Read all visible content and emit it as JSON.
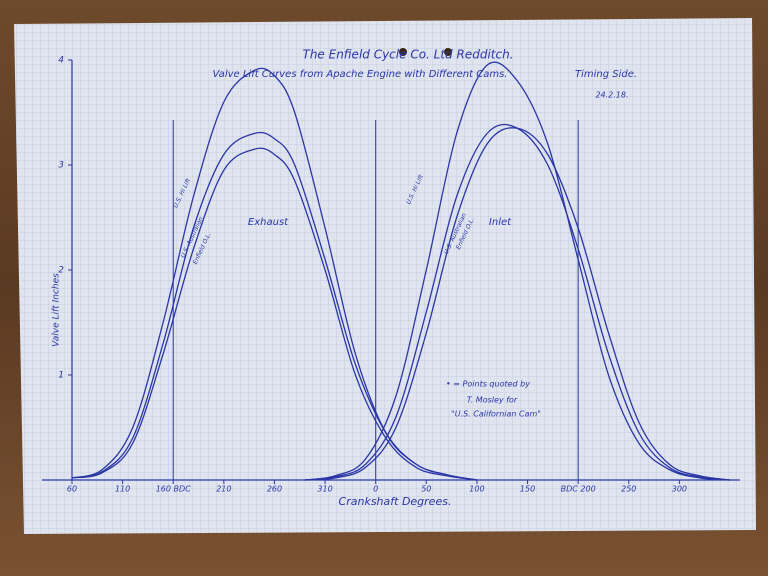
{
  "chart_data": {
    "type": "line",
    "title": "The Enfield Cycle Co. Ltd Redditch.",
    "subtitle": "Valve Lift Curves from Apache Engine with Different Cams.",
    "annotations": [
      "Timing Side.",
      "24.2.18.",
      "Exhaust",
      "Inlet",
      "• = Points quoted by",
      "T. Mosley for",
      "\"U.S. Californian Cam\""
    ],
    "x_label": "Crankshaft Degrees.",
    "y_label": "Valve Lift Inches",
    "xlim": [
      60,
      710
    ],
    "ylim": [
      0,
      4
    ],
    "xticks": [
      60,
      110,
      {
        "value": 160,
        "label": "160 BDC"
      },
      210,
      260,
      310,
      {
        "value": 360,
        "label": "0"
      },
      {
        "value": 410,
        "label": "50"
      },
      {
        "value": 460,
        "label": "100"
      },
      {
        "value": 510,
        "label": "150"
      },
      {
        "value": 560,
        "label": "BDC 200"
      },
      {
        "value": 610,
        "label": "250"
      },
      {
        "value": 660,
        "label": "300"
      }
    ],
    "yticks": [
      1,
      2,
      3,
      4
    ],
    "reference_lines": [
      160,
      360,
      560
    ],
    "color": "#2b36a6",
    "series": [
      {
        "name": "U.S. Hi Lift",
        "x": [
          60,
          90,
          120,
          150,
          180,
          210,
          240,
          260,
          280,
          310,
          340,
          370,
          400,
          430,
          460
        ],
        "values": [
          0.02,
          0.1,
          0.5,
          1.5,
          2.7,
          3.6,
          3.9,
          3.85,
          3.5,
          2.4,
          1.2,
          0.45,
          0.15,
          0.05,
          0
        ]
      },
      {
        "name": "U.S. Australian",
        "x": [
          60,
          90,
          120,
          150,
          180,
          210,
          240,
          260,
          280,
          310,
          340,
          370,
          400,
          430,
          460
        ],
        "values": [
          0.02,
          0.08,
          0.4,
          1.3,
          2.4,
          3.1,
          3.3,
          3.25,
          3.0,
          2.1,
          1.1,
          0.45,
          0.15,
          0.05,
          0
        ]
      },
      {
        "name": "Enfield O.L.",
        "x": [
          60,
          90,
          120,
          150,
          180,
          210,
          240,
          260,
          280,
          310,
          340,
          370,
          400,
          430,
          460
        ],
        "values": [
          0.02,
          0.07,
          0.35,
          1.2,
          2.2,
          2.95,
          3.15,
          3.1,
          2.85,
          2.0,
          1.0,
          0.4,
          0.12,
          0.04,
          0
        ]
      },
      {
        "name": "U.S. Hi Lift",
        "x": [
          290,
          320,
          350,
          380,
          410,
          440,
          470,
          500,
          530,
          560,
          590,
          620,
          650,
          680,
          710
        ],
        "values": [
          0,
          0.04,
          0.2,
          0.8,
          2.0,
          3.3,
          3.95,
          3.8,
          3.2,
          2.1,
          1.0,
          0.35,
          0.1,
          0.02,
          0
        ]
      },
      {
        "name": "U.S. Australian",
        "x": [
          290,
          320,
          350,
          380,
          410,
          440,
          470,
          500,
          530,
          560,
          590,
          620,
          650,
          680,
          710
        ],
        "values": [
          0,
          0.03,
          0.15,
          0.6,
          1.6,
          2.7,
          3.3,
          3.35,
          3.0,
          2.2,
          1.2,
          0.45,
          0.12,
          0.03,
          0
        ]
      },
      {
        "name": "Enfield O.L.",
        "x": [
          290,
          320,
          350,
          380,
          410,
          440,
          470,
          500,
          530,
          560,
          590,
          620,
          650,
          680,
          710
        ],
        "values": [
          0,
          0.02,
          0.12,
          0.5,
          1.4,
          2.5,
          3.2,
          3.35,
          3.1,
          2.4,
          1.4,
          0.55,
          0.15,
          0.04,
          0
        ]
      }
    ]
  }
}
